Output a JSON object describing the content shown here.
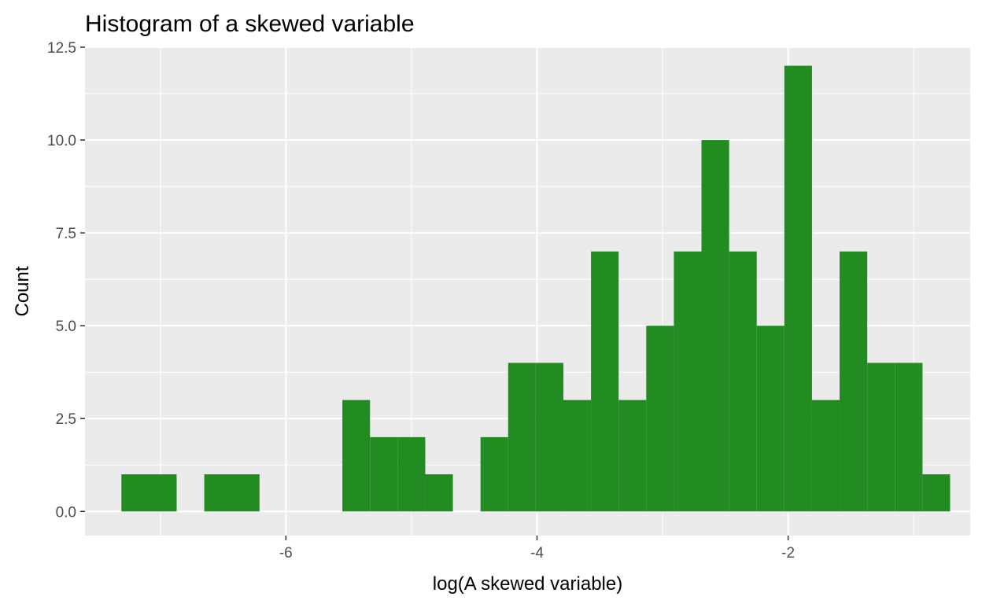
{
  "chart_data": {
    "type": "bar",
    "title": "Histogram of a skewed variable",
    "xlabel": "log(A skewed variable)",
    "ylabel": "Count",
    "bar_color": "#228B22",
    "panel_background": "#EBEBEB",
    "grid_color": "#FFFFFF",
    "tick_label_color": "#4D4D4D",
    "grid": true,
    "xlim": [
      -7.6,
      -0.55
    ],
    "ylim": [
      -0.65,
      12.5
    ],
    "x_ticks": [
      -6,
      -4,
      -2
    ],
    "x_tick_labels": [
      "-6",
      "-4",
      "-2"
    ],
    "y_ticks": [
      0,
      2.5,
      5,
      7.5,
      10,
      12.5
    ],
    "y_tick_labels": [
      "0.0",
      "2.5",
      "5.0",
      "7.5",
      "10.0",
      "12.5"
    ],
    "bins": [
      {
        "x0": -7.31,
        "x1": -6.87,
        "count": 1
      },
      {
        "x0": -6.65,
        "x1": -6.21,
        "count": 1
      },
      {
        "x0": -5.55,
        "x1": -5.33,
        "count": 3
      },
      {
        "x0": -5.33,
        "x1": -5.11,
        "count": 2
      },
      {
        "x0": -5.11,
        "x1": -4.89,
        "count": 2
      },
      {
        "x0": -4.89,
        "x1": -4.67,
        "count": 1
      },
      {
        "x0": -4.45,
        "x1": -4.23,
        "count": 2
      },
      {
        "x0": -4.23,
        "x1": -4.01,
        "count": 4
      },
      {
        "x0": -4.01,
        "x1": -3.79,
        "count": 4
      },
      {
        "x0": -3.79,
        "x1": -3.57,
        "count": 3
      },
      {
        "x0": -3.57,
        "x1": -3.35,
        "count": 7
      },
      {
        "x0": -3.35,
        "x1": -3.13,
        "count": 3
      },
      {
        "x0": -3.13,
        "x1": -2.91,
        "count": 5
      },
      {
        "x0": -2.91,
        "x1": -2.69,
        "count": 7
      },
      {
        "x0": -2.69,
        "x1": -2.47,
        "count": 10
      },
      {
        "x0": -2.47,
        "x1": -2.25,
        "count": 7
      },
      {
        "x0": -2.25,
        "x1": -2.03,
        "count": 5
      },
      {
        "x0": -2.03,
        "x1": -1.81,
        "count": 12
      },
      {
        "x0": -1.81,
        "x1": -1.59,
        "count": 3
      },
      {
        "x0": -1.59,
        "x1": -1.37,
        "count": 7
      },
      {
        "x0": -1.37,
        "x1": -1.15,
        "count": 4
      },
      {
        "x0": -1.15,
        "x1": -0.93,
        "count": 4
      },
      {
        "x0": -0.93,
        "x1": -0.71,
        "count": 1
      }
    ]
  }
}
